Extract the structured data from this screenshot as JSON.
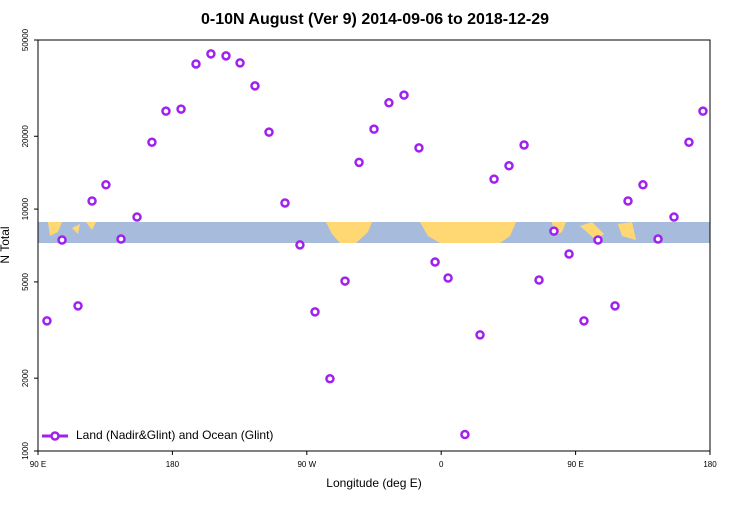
{
  "chart_data": {
    "type": "scatter",
    "title": "0-10N August (Ver 9)   2014-09-06 to 2018-12-29",
    "xlabel": "Longitude (deg E)",
    "ylabel": "N Total",
    "xlim": [
      90,
      540
    ],
    "xticks": [
      {
        "value": 90,
        "label": "90 E"
      },
      180,
      {
        "value": 270,
        "label": "90 W"
      },
      {
        "value": 360,
        "label": "0"
      },
      {
        "value": 450,
        "label": "90 E"
      },
      {
        "value": 540,
        "label": "180"
      }
    ],
    "ylim": [
      1000,
      50000
    ],
    "yticks": [
      1000,
      2000,
      5000,
      10000,
      20000,
      50000
    ],
    "ylog": true,
    "legend": "lower left",
    "series": [
      {
        "name": "Land (Nadir&Glint) and Ocean (Glint)",
        "color": "#a020f0",
        "x": [
          96.0,
          106.1,
          116.8,
          126.2,
          135.5,
          145.6,
          156.3,
          166.3,
          175.7,
          185.8,
          195.8,
          205.8,
          215.9,
          225.3,
          235.3,
          244.7,
          255.4,
          265.4,
          275.5,
          285.5,
          295.6,
          305.0,
          315.0,
          325.0,
          335.1,
          345.1,
          355.9,
          364.6,
          375.9,
          386.0,
          395.4,
          405.4,
          415.5,
          425.5,
          435.5,
          445.6,
          455.6,
          465.0,
          476.4,
          485.1,
          495.1,
          505.2,
          515.9,
          525.9,
          535.3
        ],
        "values": [
          3450,
          7450,
          3980,
          10800,
          12600,
          7520,
          9270,
          18900,
          25400,
          25900,
          39800,
          43800,
          43000,
          40200,
          32300,
          20800,
          10600,
          7110,
          3760,
          1990,
          5040,
          15600,
          21400,
          27500,
          29600,
          17900,
          6040,
          5190,
          1170,
          3020,
          13300,
          15100,
          18400,
          5090,
          8110,
          6520,
          3450,
          7450,
          3980,
          10800,
          12600,
          7520,
          9270,
          18900,
          25400
        ]
      }
    ]
  }
}
